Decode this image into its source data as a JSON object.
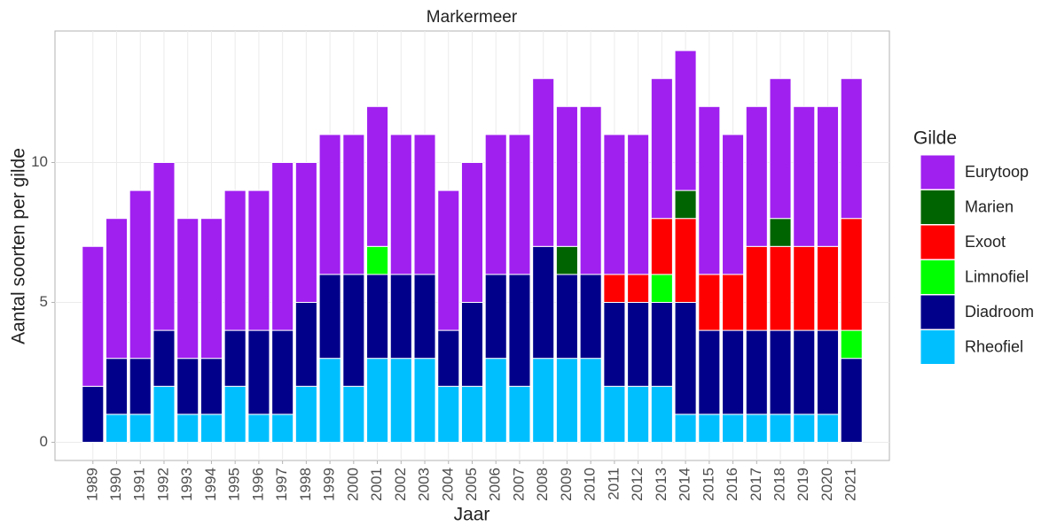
{
  "chart_data": {
    "type": "stacked_bar",
    "title": "Markermeer",
    "x_label": "Jaar",
    "y_label": "Aantal soorten per gilde",
    "legend_title": "Gilde",
    "legend": "right",
    "grid": true,
    "categories": [
      "1989",
      "1990",
      "1991",
      "1992",
      "1993",
      "1994",
      "1995",
      "1996",
      "1997",
      "1998",
      "1999",
      "2000",
      "2001",
      "2002",
      "2003",
      "2004",
      "2005",
      "2006",
      "2007",
      "2008",
      "2009",
      "2010",
      "2011",
      "2012",
      "2013",
      "2014",
      "2015",
      "2016",
      "2017",
      "2018",
      "2019",
      "2020",
      "2021"
    ],
    "series": [
      {
        "name": "Rheofiel",
        "color": "#00bfff",
        "values": [
          0,
          1,
          1,
          2,
          1,
          1,
          2,
          1,
          1,
          2,
          3,
          2,
          3,
          3,
          3,
          2,
          2,
          3,
          2,
          3,
          3,
          3,
          2,
          2,
          2,
          1,
          1,
          1,
          1,
          1,
          1,
          1,
          0
        ]
      },
      {
        "name": "Diadroom",
        "color": "#00008b",
        "values": [
          2,
          2,
          2,
          2,
          2,
          2,
          2,
          3,
          3,
          3,
          3,
          4,
          3,
          3,
          3,
          2,
          3,
          3,
          4,
          4,
          3,
          3,
          3,
          3,
          3,
          4,
          3,
          3,
          3,
          3,
          3,
          3,
          3
        ]
      },
      {
        "name": "Limnofiel",
        "color": "#00ff00",
        "values": [
          0,
          0,
          0,
          0,
          0,
          0,
          0,
          0,
          0,
          0,
          0,
          0,
          1,
          0,
          0,
          0,
          0,
          0,
          0,
          0,
          0,
          0,
          0,
          0,
          1,
          0,
          0,
          0,
          0,
          0,
          0,
          0,
          1
        ]
      },
      {
        "name": "Exoot",
        "color": "#ff0000",
        "values": [
          0,
          0,
          0,
          0,
          0,
          0,
          0,
          0,
          0,
          0,
          0,
          0,
          0,
          0,
          0,
          0,
          0,
          0,
          0,
          0,
          0,
          0,
          1,
          1,
          2,
          3,
          2,
          2,
          3,
          3,
          3,
          3,
          4
        ]
      },
      {
        "name": "Marien",
        "color": "#006400",
        "values": [
          0,
          0,
          0,
          0,
          0,
          0,
          0,
          0,
          0,
          0,
          0,
          0,
          0,
          0,
          0,
          0,
          0,
          0,
          0,
          0,
          1,
          0,
          0,
          0,
          0,
          1,
          0,
          0,
          0,
          1,
          0,
          0,
          0
        ]
      },
      {
        "name": "Eurytoop",
        "color": "#a020f0",
        "values": [
          5,
          5,
          6,
          6,
          5,
          5,
          5,
          5,
          6,
          5,
          5,
          5,
          5,
          5,
          5,
          5,
          5,
          5,
          5,
          6,
          5,
          6,
          5,
          5,
          5,
          5,
          6,
          5,
          5,
          5,
          5,
          5,
          5
        ]
      }
    ],
    "ylim": [
      -0.65,
      14.7
    ],
    "yticks": [
      0,
      5,
      10
    ]
  }
}
